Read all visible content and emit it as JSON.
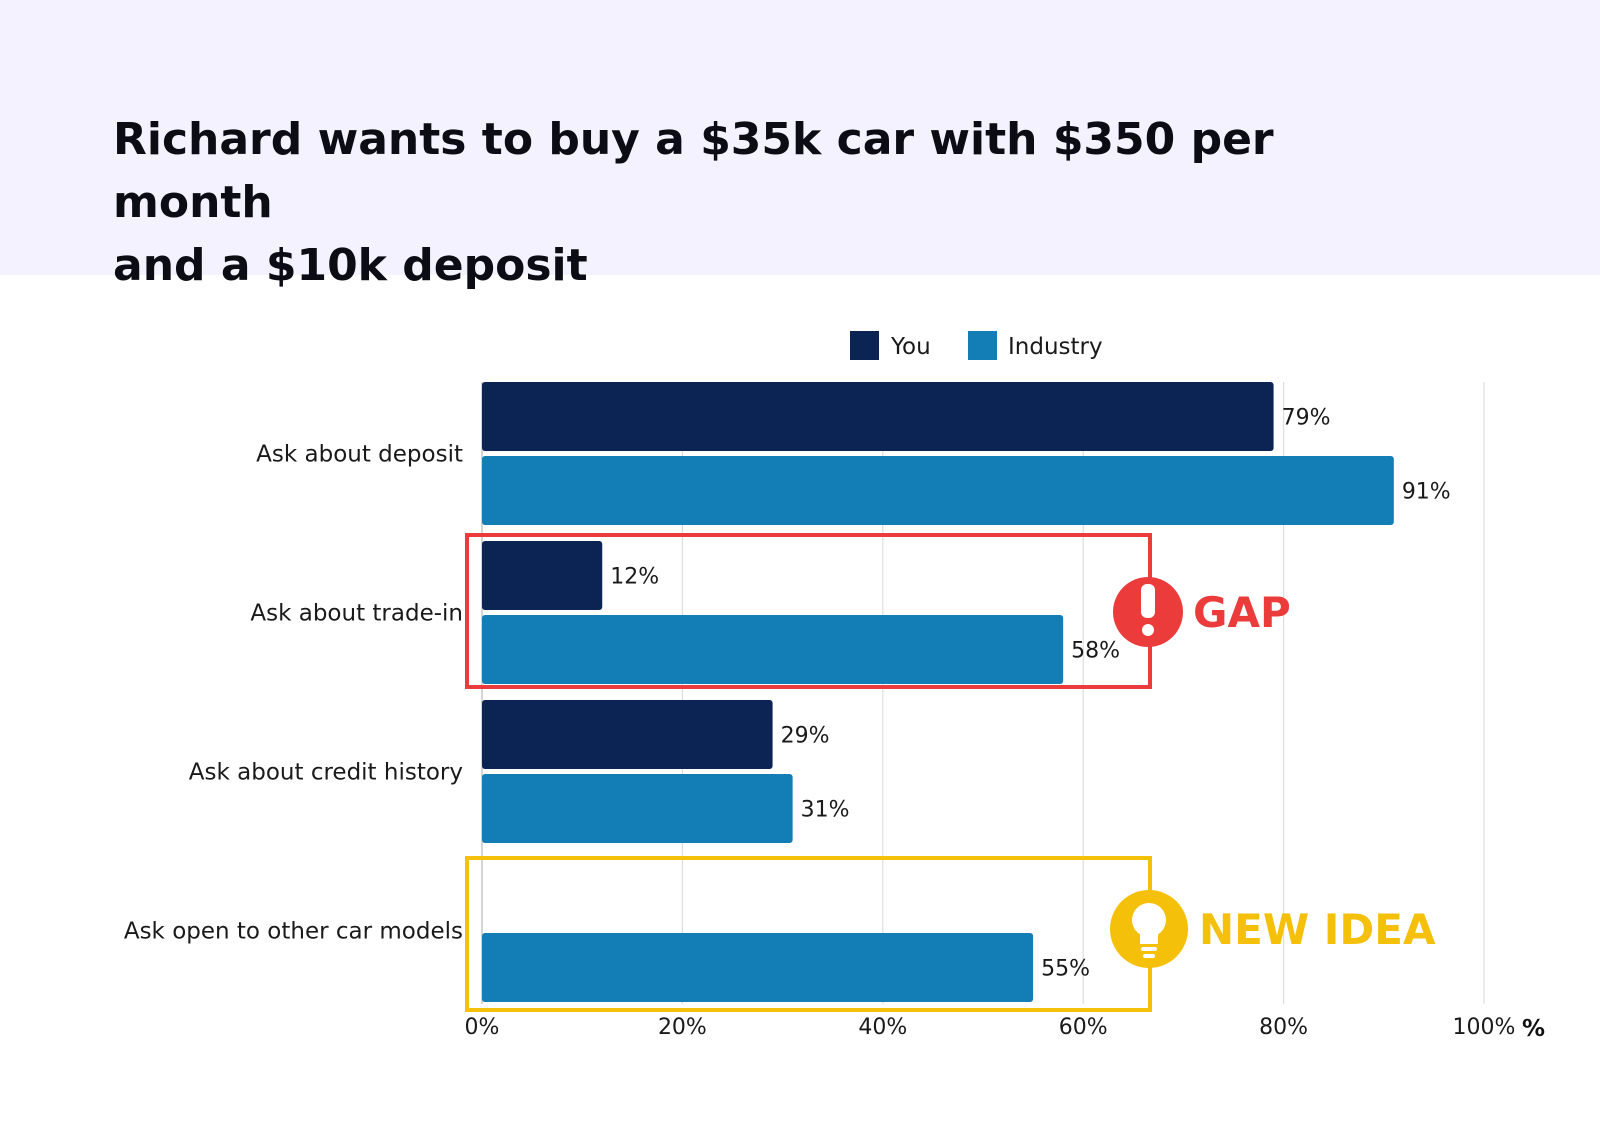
{
  "header": {
    "title_line1": "Richard wants to buy a $35k car with $350 per month",
    "title_line2": "and a $10k deposit"
  },
  "colors": {
    "header_bg": "#f3f2fe",
    "you": "#0b2454",
    "industry": "#137db5",
    "gap": "#ec3b3b",
    "new_idea": "#f5c009",
    "grid": "#dedede"
  },
  "chart_data": {
    "type": "bar",
    "orientation": "horizontal",
    "categories": [
      "Ask about deposit",
      "Ask about trade-in",
      "Ask about credit history",
      "Ask open to other car models"
    ],
    "series": [
      {
        "name": "You",
        "values": [
          79,
          12,
          29,
          null
        ]
      },
      {
        "name": "Industry",
        "values": [
          91,
          58,
          31,
          55
        ]
      }
    ],
    "data_labels": [
      [
        "79%",
        "12%",
        "29%",
        null
      ],
      [
        "91%",
        "58%",
        "31%",
        "55%"
      ]
    ],
    "xlim": [
      0,
      100
    ],
    "x_ticks": [
      "0%",
      "20%",
      "40%",
      "60%",
      "80%",
      "100%"
    ],
    "x_unit": "%",
    "grid": true,
    "legend_position": "top",
    "annotations": [
      {
        "text": "GAP",
        "icon": "exclamation-icon",
        "category": "Ask about trade-in",
        "color": "#ec3b3b"
      },
      {
        "text": "NEW IDEA",
        "icon": "lightbulb-icon",
        "category": "Ask open to other car models",
        "color": "#f5c009"
      }
    ]
  }
}
